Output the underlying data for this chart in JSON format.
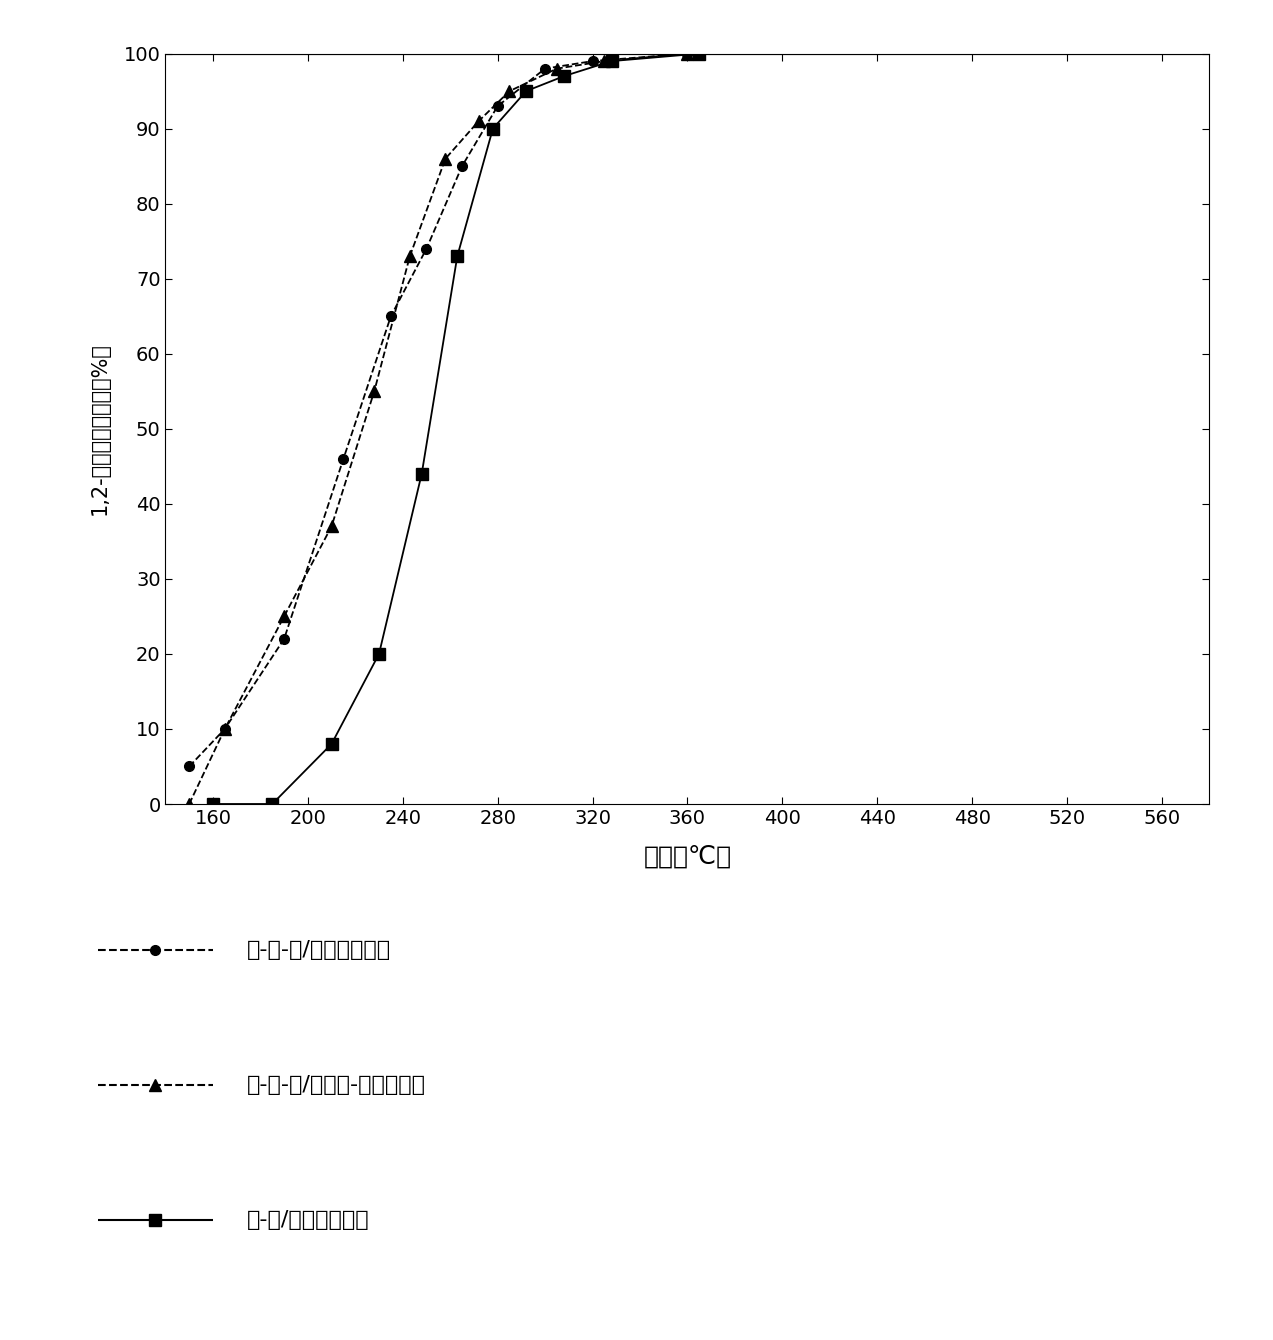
{
  "xlabel": "温度（℃）",
  "ylabel": "1,2-二氯苯的转化率（%）",
  "xlim": [
    140,
    580
  ],
  "ylim": [
    0,
    100
  ],
  "xticks": [
    160,
    200,
    240,
    280,
    320,
    360,
    400,
    440,
    480,
    520,
    560
  ],
  "yticks": [
    0,
    10,
    20,
    30,
    40,
    50,
    60,
    70,
    80,
    90,
    100
  ],
  "series": [
    {
      "label": "銀-钒-锃/氧化鑉催化剂",
      "marker": "o",
      "linestyle": "--",
      "x": [
        150,
        165,
        190,
        215,
        235,
        250,
        265,
        280,
        300,
        320,
        360
      ],
      "y": [
        5,
        10,
        22,
        46,
        65,
        74,
        85,
        93,
        98,
        99,
        100
      ]
    },
    {
      "label": "銀-钒-锃/氧化鑉-硫酸催化剂",
      "marker": "^",
      "linestyle": "--",
      "x": [
        150,
        165,
        190,
        210,
        228,
        243,
        258,
        272,
        285,
        305,
        325,
        360
      ],
      "y": [
        0,
        10,
        25,
        37,
        55,
        73,
        86,
        91,
        95,
        98,
        99,
        100
      ]
    },
    {
      "label": "钒-锃/氧化鑉催化剂",
      "marker": "s",
      "linestyle": "-",
      "x": [
        160,
        185,
        210,
        230,
        248,
        263,
        278,
        292,
        308,
        328,
        365
      ],
      "y": [
        0,
        0,
        8,
        20,
        44,
        73,
        90,
        95,
        97,
        99,
        100
      ]
    }
  ],
  "legend_items": [
    {
      "marker": "o",
      "linestyle": "--",
      "label": "銀-钒-锃/氧化鑉催化剂"
    },
    {
      "marker": "^",
      "linestyle": "--",
      "label": "銀-钒-锃/氧化鑉-硫酸催化剂"
    },
    {
      "marker": "s",
      "linestyle": "-",
      "label": "钒-锃/氧化鑉催化剂"
    }
  ],
  "background_color": "#ffffff",
  "figure_width": 12.73,
  "figure_height": 13.4
}
